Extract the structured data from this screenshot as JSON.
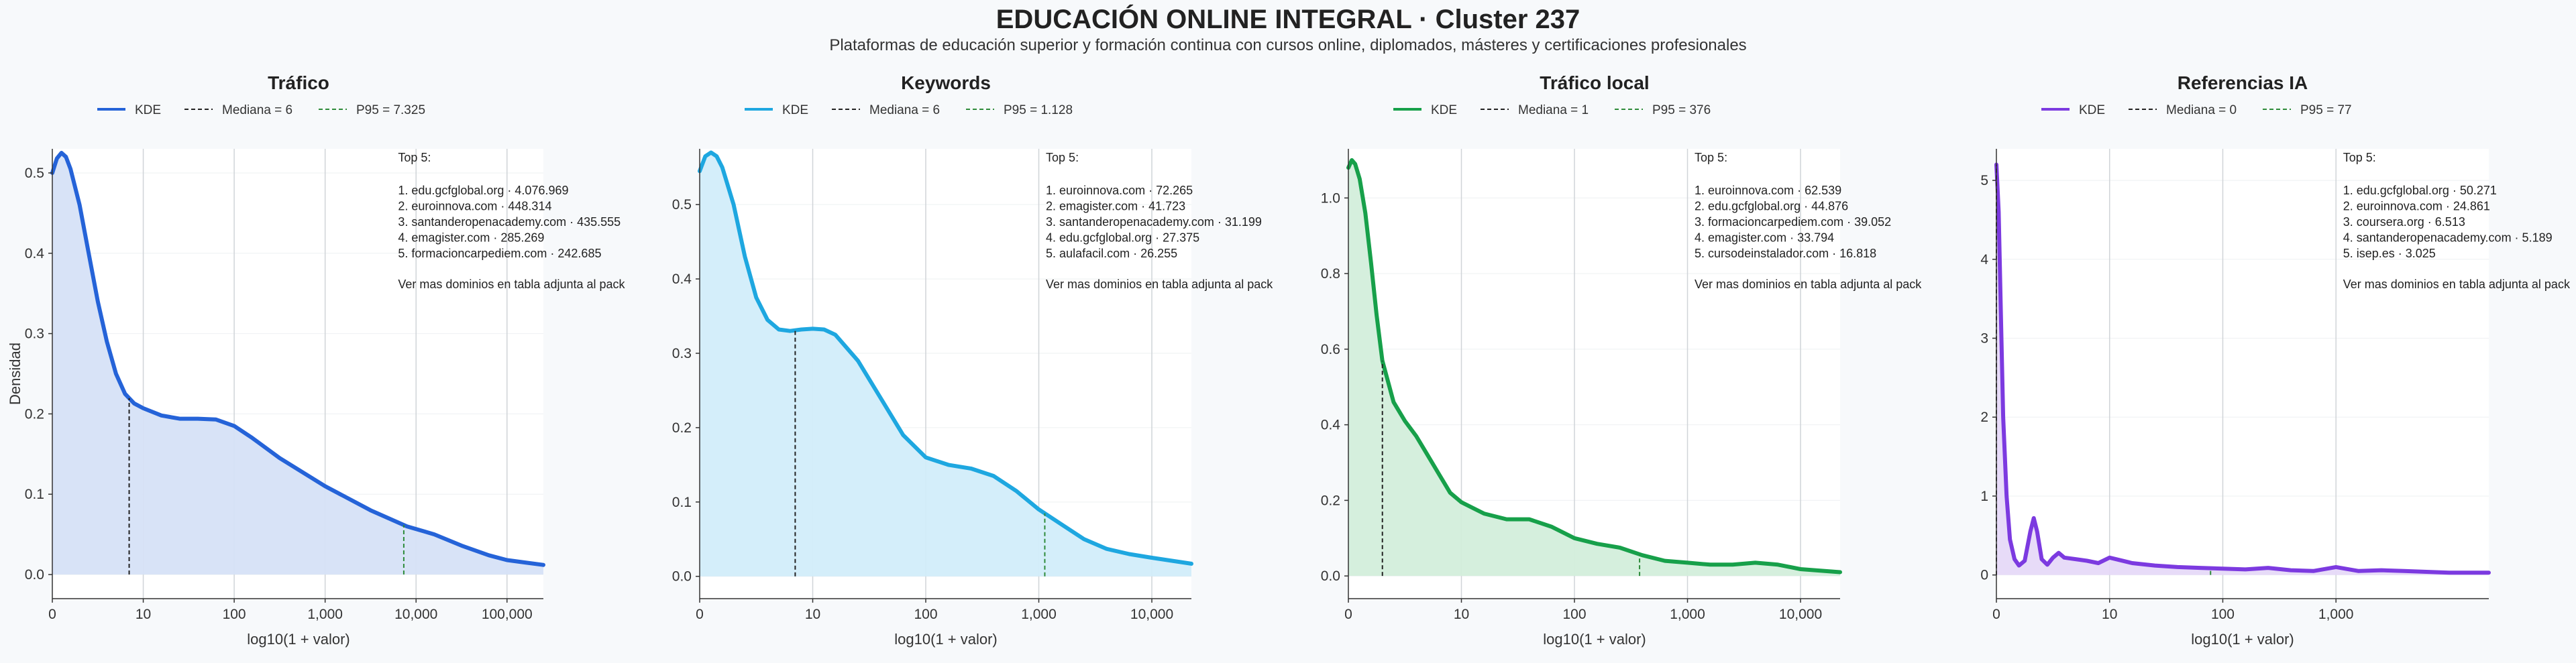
{
  "title": "EDUCACIÓN ONLINE INTEGRAL · Cluster 237",
  "subtitle": "Plataformas de educación superior y formación continua con cursos online, diplomados, másteres y certificaciones profesionales",
  "colors": {
    "median": "#222222",
    "p95": "#2e8b3a",
    "grid": "#d0d4d8"
  },
  "chart_data": [
    {
      "type": "area",
      "title": "Tráfico",
      "ylabel": "Densidad",
      "xlabel": "log10(1 + valor)",
      "color": "#2563d8",
      "fill": "#d6e1f7",
      "x_scale": "log10(1 + valor)",
      "xlim": [
        0,
        5.4
      ],
      "ylim": [
        -0.03,
        0.53
      ],
      "x_ticks": [
        0,
        1,
        2,
        3,
        4,
        5
      ],
      "x_tick_labels": [
        "0",
        "10",
        "100",
        "1,000",
        "10,000",
        "100,000"
      ],
      "y_ticks": [
        0.0,
        0.1,
        0.2,
        0.3,
        0.4,
        0.5
      ],
      "y_tick_labels": [
        "0.0",
        "0.1",
        "0.2",
        "0.3",
        "0.4",
        "0.5"
      ],
      "kde_x": [
        0,
        0.05,
        0.1,
        0.15,
        0.2,
        0.3,
        0.4,
        0.5,
        0.6,
        0.7,
        0.8,
        0.9,
        1.0,
        1.2,
        1.4,
        1.6,
        1.8,
        2.0,
        2.2,
        2.5,
        3.0,
        3.5,
        3.9,
        4.2,
        4.5,
        4.8,
        5.0,
        5.2,
        5.4
      ],
      "kde_y": [
        0.5,
        0.518,
        0.525,
        0.52,
        0.505,
        0.46,
        0.4,
        0.34,
        0.29,
        0.25,
        0.225,
        0.213,
        0.207,
        0.198,
        0.194,
        0.194,
        0.193,
        0.185,
        0.17,
        0.145,
        0.11,
        0.08,
        0.06,
        0.05,
        0.036,
        0.024,
        0.018,
        0.015,
        0.012
      ],
      "median_label": "Mediana = 6",
      "median_x": 0.845,
      "p95_label": "P95 = 7.325",
      "p95_x": 3.865,
      "legend": [
        "KDE",
        "Mediana = 6",
        "P95 = 7.325"
      ],
      "top5_title": "Top 5:",
      "top5": [
        "1. edu.gcfglobal.org · 4.076.969",
        "2. euroinnova.com · 448.314",
        "3. santanderopenacademy.com · 435.555",
        "4. emagister.com · 285.269",
        "5. formacioncarpediem.com · 242.685"
      ],
      "note": "Ver mas dominios en tabla adjunta al pack"
    },
    {
      "type": "area",
      "title": "Keywords",
      "ylabel": "",
      "xlabel": "log10(1 + valor)",
      "color": "#1ea7e0",
      "fill": "#d2edfa",
      "x_scale": "log10(1 + valor)",
      "xlim": [
        0,
        4.35
      ],
      "ylim": [
        -0.03,
        0.575
      ],
      "x_ticks": [
        0,
        1,
        2,
        3,
        4
      ],
      "x_tick_labels": [
        "0",
        "10",
        "100",
        "1,000",
        "10,000"
      ],
      "y_ticks": [
        0.0,
        0.1,
        0.2,
        0.3,
        0.4,
        0.5
      ],
      "y_tick_labels": [
        "0.0",
        "0.1",
        "0.2",
        "0.3",
        "0.4",
        "0.5"
      ],
      "kde_x": [
        0,
        0.05,
        0.1,
        0.15,
        0.2,
        0.3,
        0.4,
        0.5,
        0.6,
        0.7,
        0.8,
        0.9,
        1.0,
        1.1,
        1.2,
        1.4,
        1.6,
        1.8,
        2.0,
        2.2,
        2.4,
        2.6,
        2.8,
        3.0,
        3.2,
        3.4,
        3.6,
        3.8,
        4.0,
        4.35
      ],
      "kde_y": [
        0.545,
        0.565,
        0.57,
        0.565,
        0.55,
        0.5,
        0.43,
        0.375,
        0.345,
        0.332,
        0.33,
        0.332,
        0.333,
        0.332,
        0.325,
        0.29,
        0.24,
        0.19,
        0.16,
        0.15,
        0.145,
        0.135,
        0.115,
        0.09,
        0.07,
        0.05,
        0.037,
        0.03,
        0.025,
        0.017
      ],
      "median_label": "Mediana = 6",
      "median_x": 0.845,
      "p95_label": "P95 = 1.128",
      "p95_x": 3.053,
      "legend": [
        "KDE",
        "Mediana = 6",
        "P95 = 1.128"
      ],
      "top5_title": "Top 5:",
      "top5": [
        "1. euroinnova.com · 72.265",
        "2. emagister.com · 41.723",
        "3. santanderopenacademy.com · 31.199",
        "4. edu.gcfglobal.org · 27.375",
        "5. aulafacil.com · 26.255"
      ],
      "note": "Ver mas dominios en tabla adjunta al pack"
    },
    {
      "type": "area",
      "title": "Tráfico local",
      "ylabel": "",
      "xlabel": "log10(1 + valor)",
      "color": "#17a04a",
      "fill": "#d3eedb",
      "x_scale": "log10(1 + valor)",
      "xlim": [
        0,
        4.35
      ],
      "ylim": [
        -0.06,
        1.13
      ],
      "x_ticks": [
        0,
        1,
        2,
        3,
        4
      ],
      "x_tick_labels": [
        "0",
        "10",
        "100",
        "1,000",
        "10,000"
      ],
      "y_ticks": [
        0.0,
        0.2,
        0.4,
        0.6,
        0.8,
        1.0
      ],
      "y_tick_labels": [
        "0.0",
        "0.2",
        "0.4",
        "0.6",
        "0.8",
        "1.0"
      ],
      "kde_x": [
        0,
        0.03,
        0.06,
        0.1,
        0.15,
        0.2,
        0.25,
        0.3,
        0.4,
        0.5,
        0.6,
        0.7,
        0.8,
        0.9,
        1.0,
        1.1,
        1.2,
        1.4,
        1.6,
        1.8,
        2.0,
        2.2,
        2.4,
        2.6,
        2.8,
        3.0,
        3.2,
        3.4,
        3.6,
        3.8,
        4.0,
        4.35
      ],
      "kde_y": [
        1.08,
        1.1,
        1.09,
        1.05,
        0.96,
        0.83,
        0.69,
        0.57,
        0.46,
        0.41,
        0.37,
        0.32,
        0.27,
        0.22,
        0.195,
        0.18,
        0.165,
        0.15,
        0.15,
        0.13,
        0.1,
        0.085,
        0.075,
        0.055,
        0.04,
        0.035,
        0.03,
        0.03,
        0.035,
        0.03,
        0.018,
        0.01
      ],
      "median_label": "Mediana = 1",
      "median_x": 0.301,
      "p95_label": "P95 = 376",
      "p95_x": 2.576,
      "legend": [
        "KDE",
        "Mediana = 1",
        "P95 = 376"
      ],
      "top5_title": "Top 5:",
      "top5": [
        "1. euroinnova.com · 62.539",
        "2. edu.gcfglobal.org · 44.876",
        "3. formacioncarpediem.com · 39.052",
        "4. emagister.com · 33.794",
        "5. cursodeinstalador.com · 16.818"
      ],
      "note": "Ver mas dominios en tabla adjunta al pack"
    },
    {
      "type": "area",
      "title": "Referencias IA",
      "ylabel": "",
      "xlabel": "log10(1 + valor)",
      "color": "#7c3ae0",
      "fill": "#e6d9f8",
      "x_scale": "log10(1 + valor)",
      "xlim": [
        0,
        4.35
      ],
      "ylim": [
        -0.3,
        5.4
      ],
      "x_ticks": [
        0,
        1,
        2,
        3
      ],
      "x_tick_labels": [
        "0",
        "10",
        "100",
        "1,000"
      ],
      "y_ticks": [
        0,
        1,
        2,
        3,
        4,
        5
      ],
      "y_tick_labels": [
        "0",
        "1",
        "2",
        "3",
        "4",
        "5"
      ],
      "kde_x": [
        0,
        0.02,
        0.04,
        0.06,
        0.09,
        0.12,
        0.16,
        0.2,
        0.25,
        0.3,
        0.33,
        0.36,
        0.4,
        0.45,
        0.5,
        0.55,
        0.6,
        0.7,
        0.8,
        0.9,
        1.0,
        1.2,
        1.4,
        1.6,
        1.8,
        2.0,
        2.2,
        2.4,
        2.6,
        2.8,
        3.0,
        3.2,
        3.4,
        3.6,
        3.8,
        4.0,
        4.35
      ],
      "kde_y": [
        5.2,
        4.6,
        3.3,
        2.0,
        1.0,
        0.45,
        0.2,
        0.12,
        0.18,
        0.55,
        0.72,
        0.55,
        0.2,
        0.13,
        0.22,
        0.28,
        0.22,
        0.2,
        0.18,
        0.15,
        0.22,
        0.15,
        0.12,
        0.1,
        0.09,
        0.08,
        0.07,
        0.09,
        0.06,
        0.05,
        0.1,
        0.05,
        0.06,
        0.05,
        0.04,
        0.03,
        0.03
      ],
      "median_label": "Mediana = 0",
      "median_x": 0,
      "p95_label": "P95 = 77",
      "p95_x": 1.892,
      "legend": [
        "KDE",
        "Mediana = 0",
        "P95 = 77"
      ],
      "top5_title": "Top 5:",
      "top5": [
        "1. edu.gcfglobal.org · 50.271",
        "2. euroinnova.com · 24.861",
        "3. coursera.org · 6.513",
        "4. santanderopenacademy.com · 5.189",
        "5. isep.es · 3.025"
      ],
      "note": "Ver mas dominios en tabla adjunta al pack"
    }
  ]
}
